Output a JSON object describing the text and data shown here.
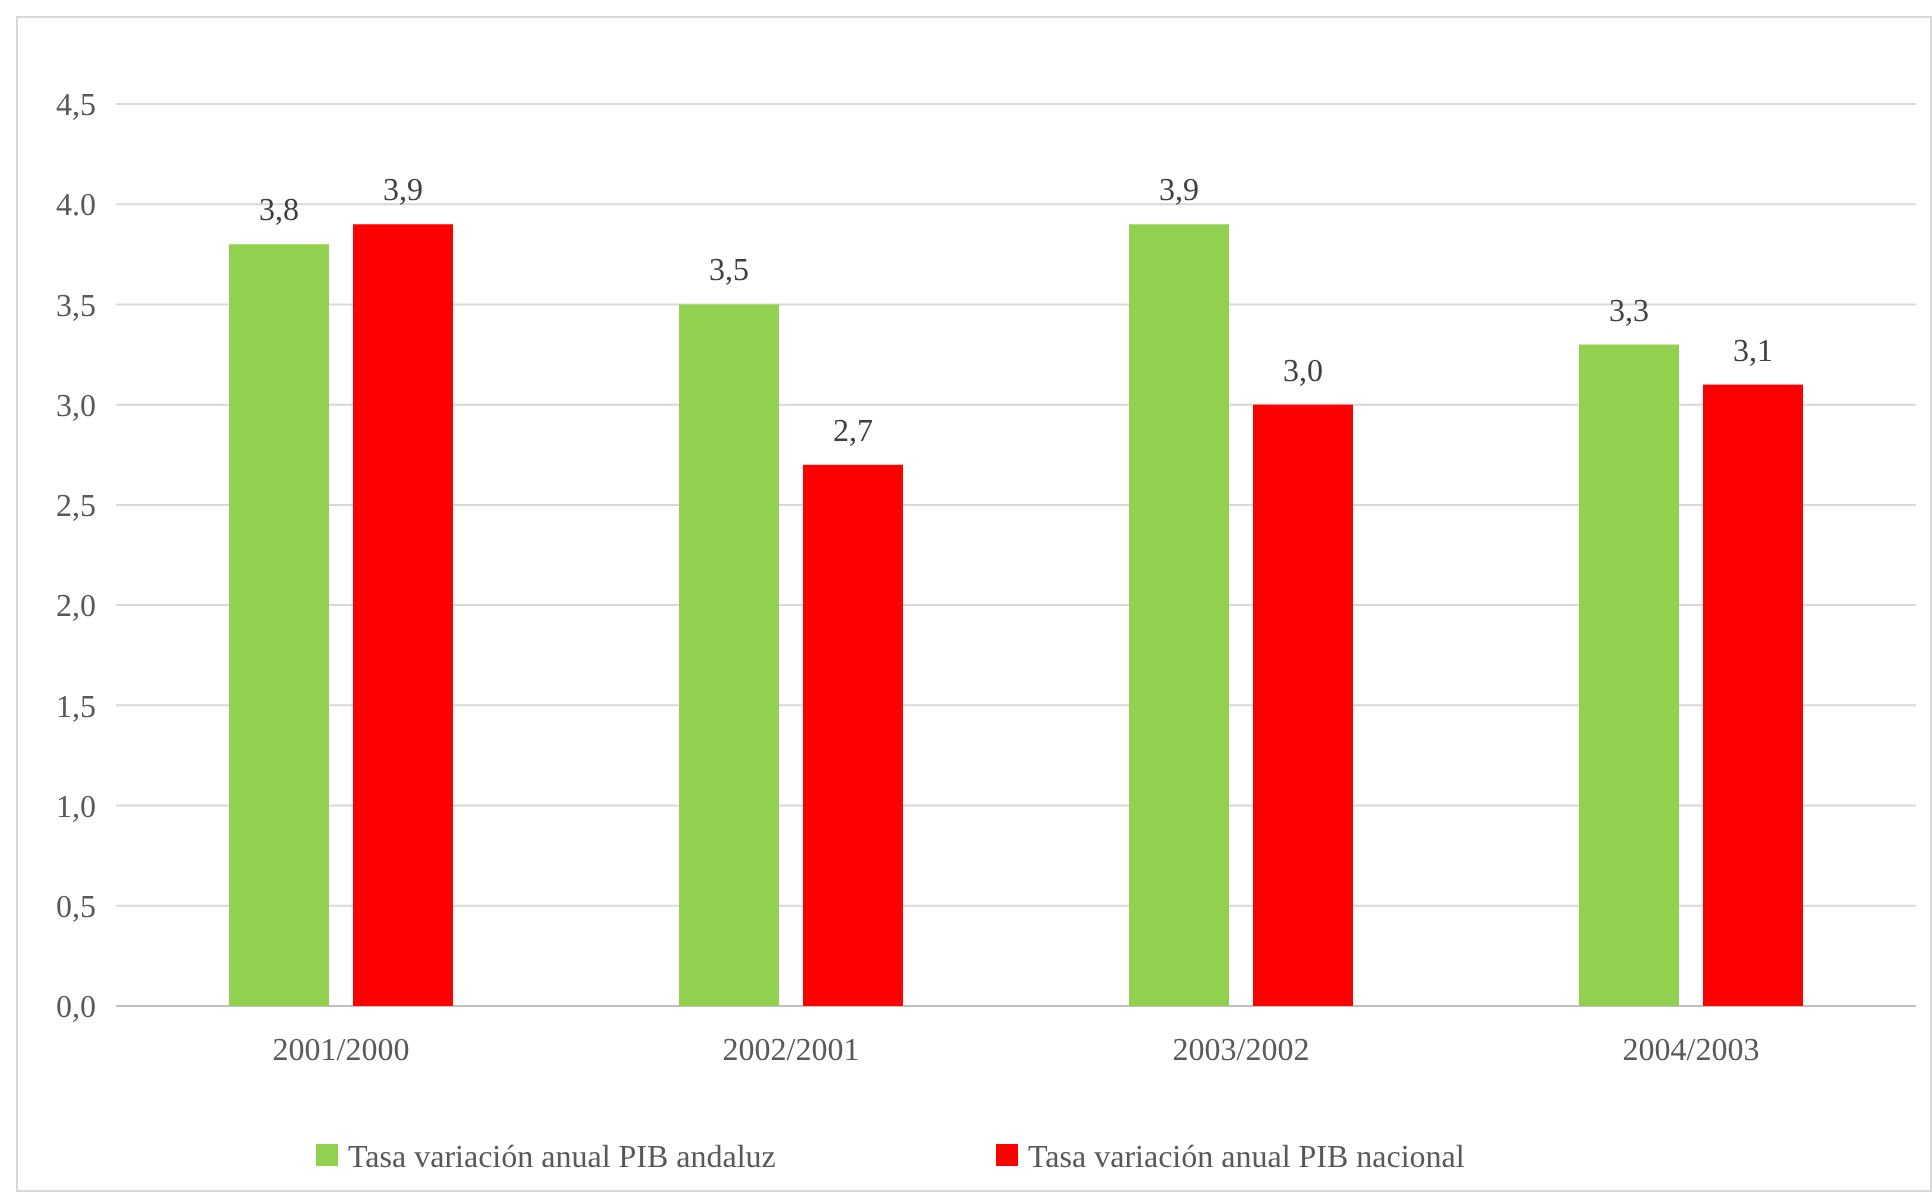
{
  "chart_data": {
    "type": "bar",
    "categories": [
      "2001/2000",
      "2002/2001",
      "2003/2002",
      "2004/2003"
    ],
    "series": [
      {
        "name": "Tasa variación anual PIB andaluz",
        "color": "#92d050",
        "values": [
          3.8,
          3.5,
          3.9,
          3.3
        ],
        "value_labels": [
          "3,8",
          "3,5",
          "3,9",
          "3,3"
        ]
      },
      {
        "name": "Tasa variación anual PIB nacional",
        "color": "#ff0000",
        "values": [
          3.9,
          2.7,
          3.0,
          3.1
        ],
        "value_labels": [
          "3,9",
          "2,7",
          "3,0",
          "3,1"
        ]
      }
    ],
    "ylim": [
      0,
      4.5
    ],
    "yticks": [
      {
        "value": 0,
        "label": "0,0"
      },
      {
        "value": 0.5,
        "label": "0,5"
      },
      {
        "value": 1,
        "label": "1,0"
      },
      {
        "value": 1.5,
        "label": "1,5"
      },
      {
        "value": 2,
        "label": "2,0"
      },
      {
        "value": 2.5,
        "label": "2,5"
      },
      {
        "value": 3,
        "label": "3,0"
      },
      {
        "value": 3.5,
        "label": "3,5"
      },
      {
        "value": 4,
        "label": "4.0"
      },
      {
        "value": 4.5,
        "label": "4,5"
      }
    ],
    "grid": "y",
    "legend": "bottom"
  }
}
